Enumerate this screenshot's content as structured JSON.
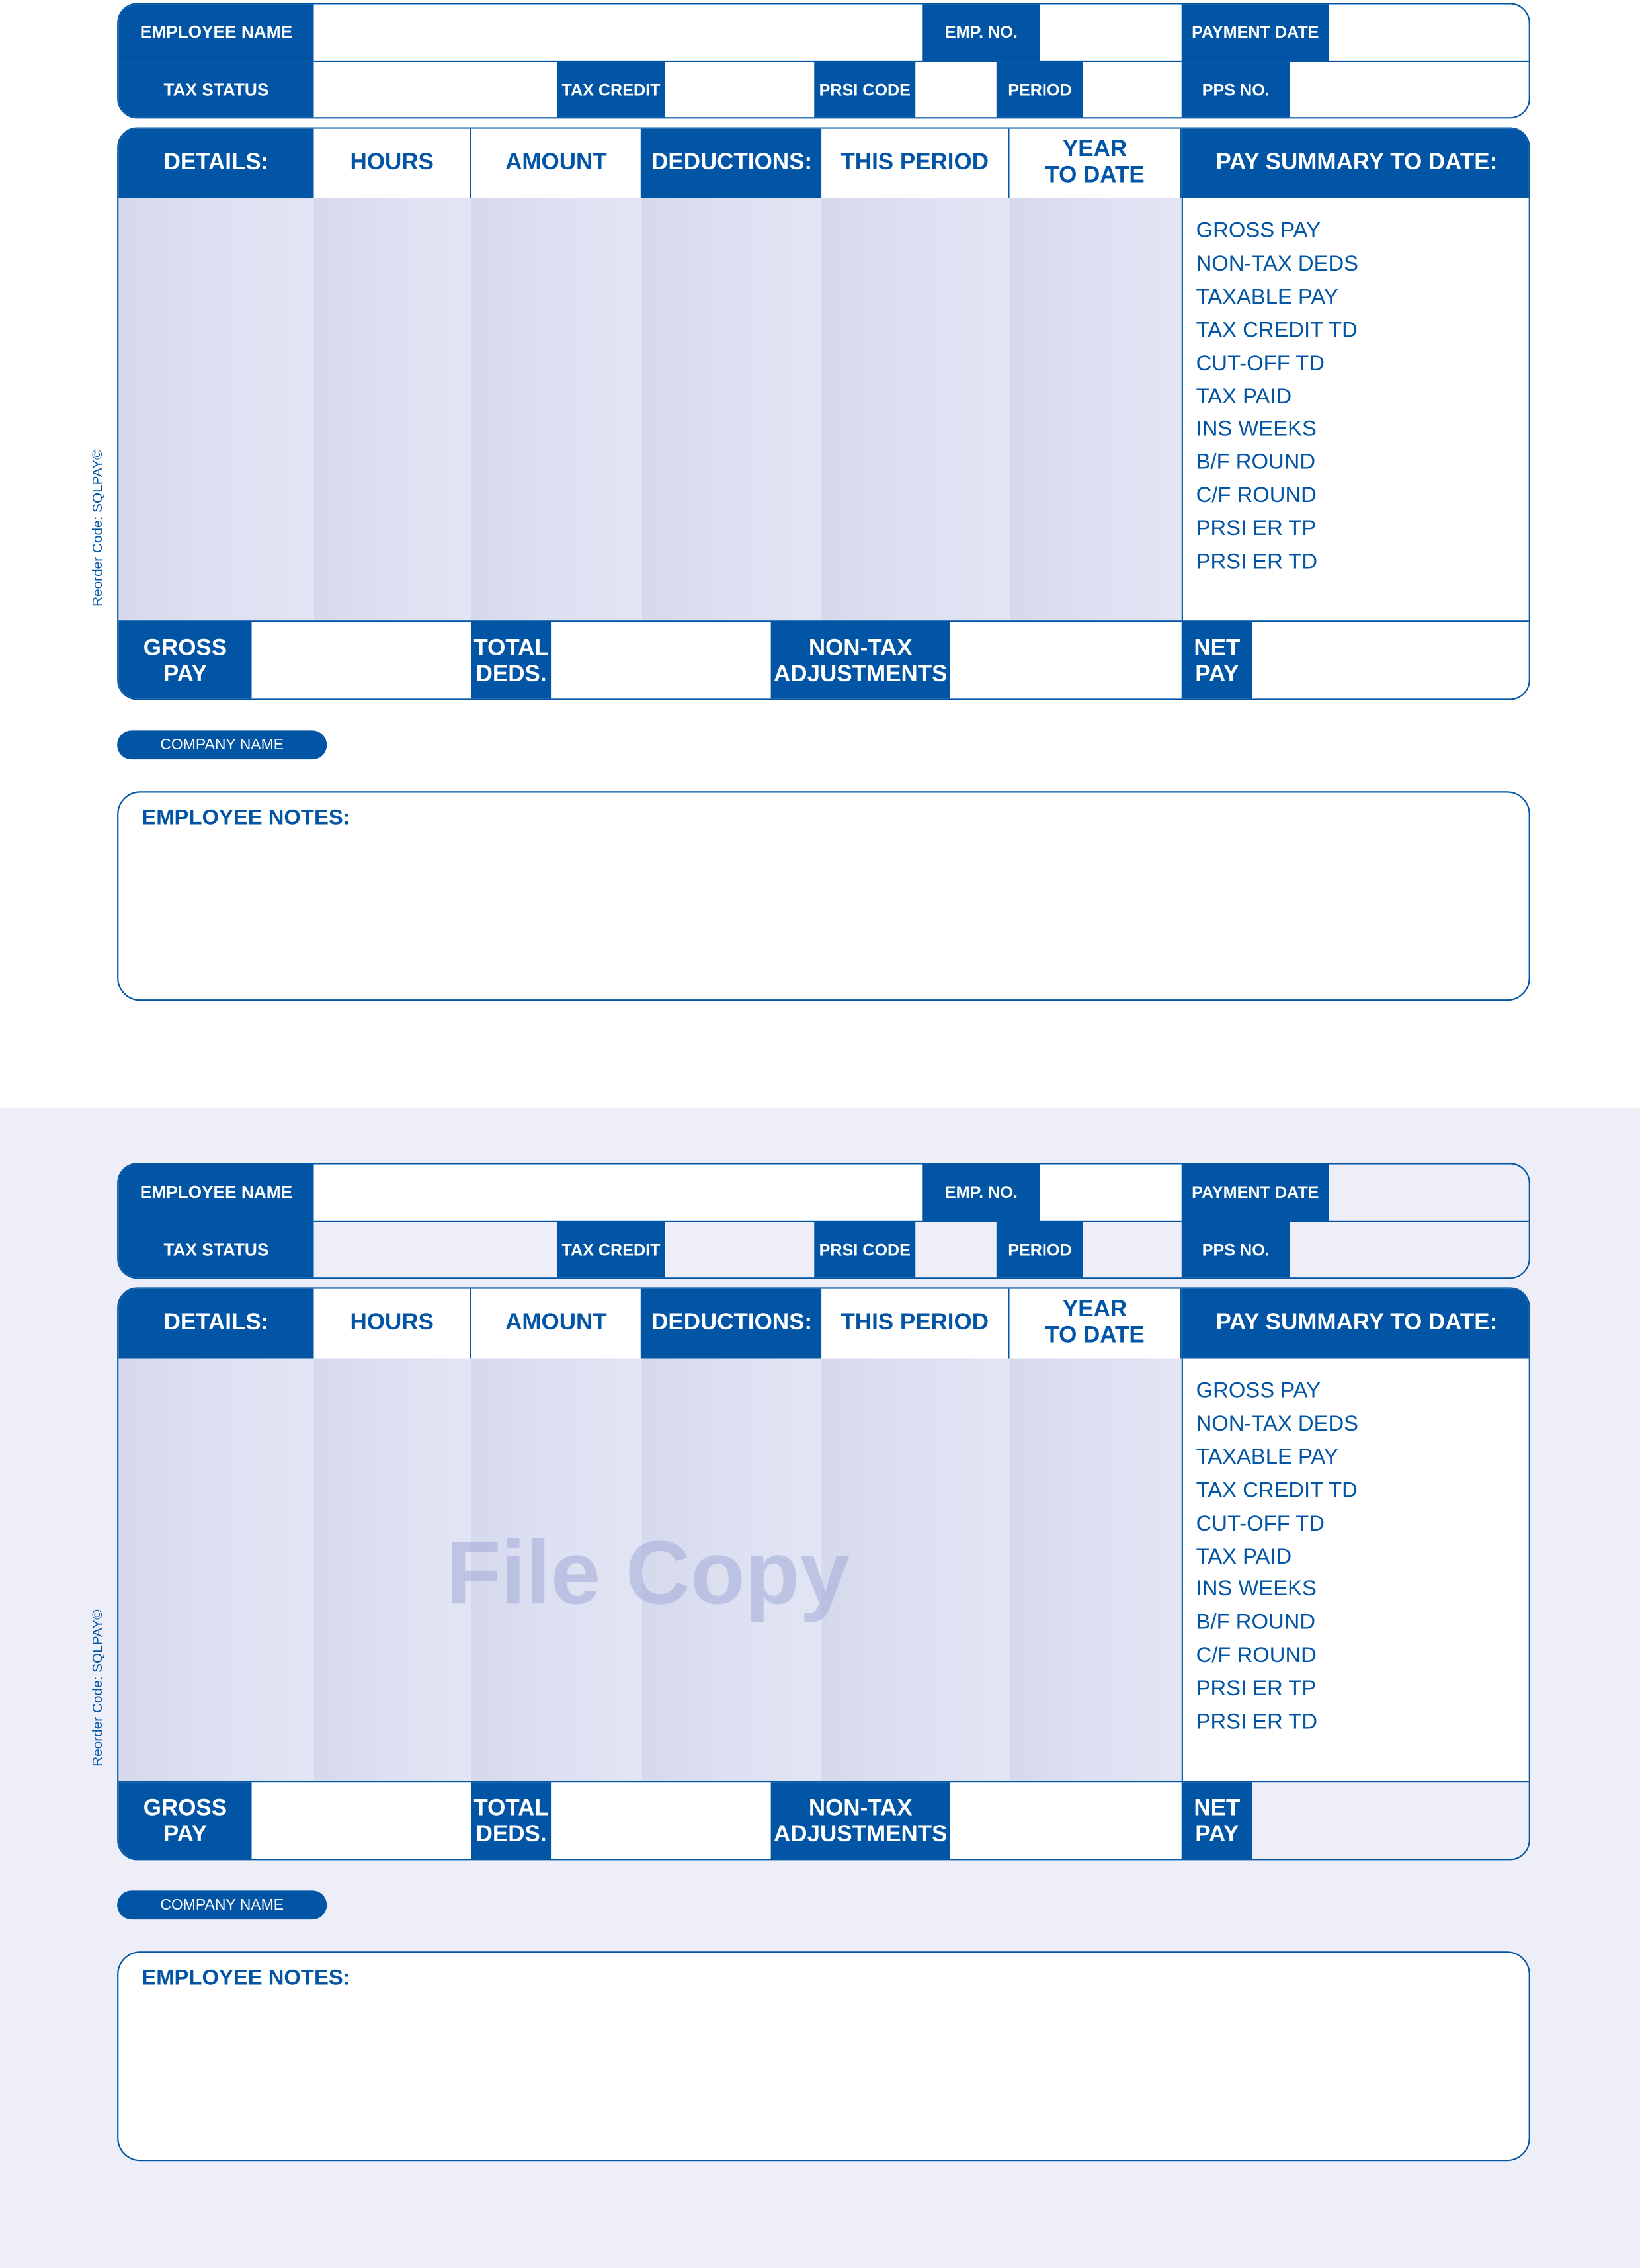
{
  "colors": {
    "brand_blue": "#0255a5",
    "body_shade": "#dde0f0",
    "copy_tint": "#eeeef8"
  },
  "slips": [
    {
      "header": {
        "employee_name": "EMPLOYEE NAME",
        "emp_no": "EMP. NO.",
        "payment_date": "PAYMENT DATE",
        "tax_status": "TAX STATUS",
        "tax_credit": "TAX CREDIT",
        "prsi_code": "PRSI CODE",
        "period": "PERIOD",
        "pps_no": "PPS NO."
      },
      "table": {
        "details": "DETAILS:",
        "hours": "HOURS",
        "amount": "AMOUNT",
        "deductions": "DEDUCTIONS:",
        "this_period": "THIS PERIOD",
        "year_to_date_1": "YEAR",
        "year_to_date_2": "TO DATE",
        "pay_summary": "PAY SUMMARY TO DATE:"
      },
      "summary_items": [
        "GROSS PAY",
        "NON-TAX DEDS",
        "TAXABLE PAY",
        "TAX CREDIT TD",
        "CUT-OFF TD",
        "TAX PAID",
        "INS WEEKS",
        "B/F ROUND",
        "C/F ROUND",
        "PRSI ER TP",
        "PRSI ER TD"
      ],
      "footer": {
        "gross_1": "GROSS",
        "gross_2": "PAY",
        "total_1": "TOTAL",
        "total_2": "DEDS.",
        "nontax_1": "NON-TAX",
        "nontax_2": "ADJUSTMENTS",
        "net_1": "NET",
        "net_2": "PAY"
      },
      "reorder_code": "Reorder Code: SQLPAY©",
      "company_name": "COMPANY NAME",
      "employee_notes": "EMPLOYEE NOTES:",
      "watermark": ""
    },
    {
      "header": {
        "employee_name": "EMPLOYEE NAME",
        "emp_no": "EMP. NO.",
        "payment_date": "PAYMENT DATE",
        "tax_status": "TAX STATUS",
        "tax_credit": "TAX CREDIT",
        "prsi_code": "PRSI CODE",
        "period": "PERIOD",
        "pps_no": "PPS NO."
      },
      "table": {
        "details": "DETAILS:",
        "hours": "HOURS",
        "amount": "AMOUNT",
        "deductions": "DEDUCTIONS:",
        "this_period": "THIS PERIOD",
        "year_to_date_1": "YEAR",
        "year_to_date_2": "TO DATE",
        "pay_summary": "PAY SUMMARY TO DATE:"
      },
      "summary_items": [
        "GROSS PAY",
        "NON-TAX DEDS",
        "TAXABLE PAY",
        "TAX CREDIT TD",
        "CUT-OFF TD",
        "TAX PAID",
        "INS WEEKS",
        "B/F ROUND",
        "C/F ROUND",
        "PRSI ER TP",
        "PRSI ER TD"
      ],
      "footer": {
        "gross_1": "GROSS",
        "gross_2": "PAY",
        "total_1": "TOTAL",
        "total_2": "DEDS.",
        "nontax_1": "NON-TAX",
        "nontax_2": "ADJUSTMENTS",
        "net_1": "NET",
        "net_2": "PAY"
      },
      "reorder_code": "Reorder Code: SQLPAY©",
      "company_name": "COMPANY NAME",
      "employee_notes": "EMPLOYEE NOTES:",
      "watermark": "File Copy"
    }
  ]
}
